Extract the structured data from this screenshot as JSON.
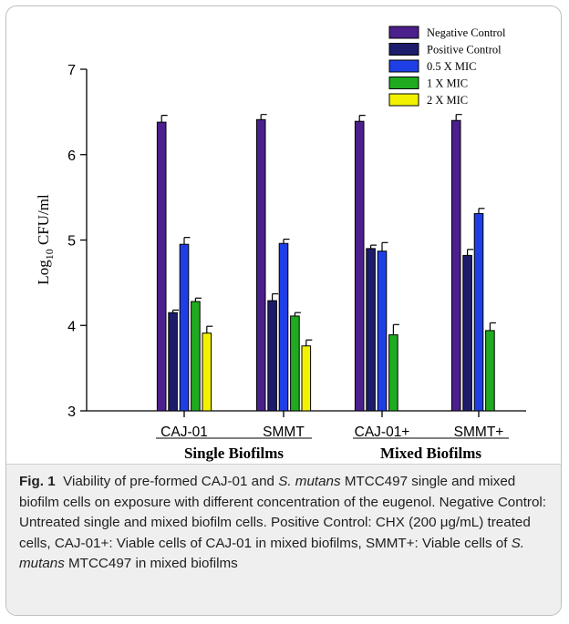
{
  "chart_data": {
    "type": "bar",
    "ylabel_main": "Log",
    "ylabel_sub": "10",
    "ylabel_rest": " CFU/ml",
    "ylim": [
      3,
      7
    ],
    "yticks": [
      "3",
      "4",
      "5",
      "6",
      "7"
    ],
    "categories": [
      "CAJ-01",
      "SMMT",
      "CAJ-01+",
      "SMMT+"
    ],
    "groups": [
      {
        "label": "Single Biofilms"
      },
      {
        "label": "Mixed Biofilms"
      }
    ],
    "series": [
      {
        "name": "Negative Control",
        "color": "#4b1f8c",
        "values": [
          6.38,
          6.41,
          6.39,
          6.4
        ],
        "errors": [
          0.08,
          0.06,
          0.07,
          0.07
        ]
      },
      {
        "name": "Positive Control",
        "color": "#1c1c6b",
        "values": [
          4.15,
          4.29,
          4.9,
          4.82
        ],
        "errors": [
          0.03,
          0.08,
          0.04,
          0.07
        ]
      },
      {
        "name": "0.5 X MIC",
        "color": "#1f3fe6",
        "values": [
          4.95,
          4.96,
          4.87,
          5.31
        ],
        "errors": [
          0.08,
          0.05,
          0.1,
          0.06
        ]
      },
      {
        "name": "1 X MIC",
        "color": "#1faa1f",
        "values": [
          4.28,
          4.11,
          3.89,
          3.94
        ],
        "errors": [
          0.04,
          0.04,
          0.12,
          0.09
        ]
      },
      {
        "name": "2 X MIC",
        "color": "#f2f200",
        "values": [
          3.91,
          3.76,
          null,
          null
        ],
        "errors": [
          0.08,
          0.07,
          null,
          null
        ]
      }
    ],
    "legend_position": "top-right",
    "grid": false
  },
  "caption": {
    "fig_label": "Fig. 1",
    "part1": "Viability of pre-formed CAJ-01 and ",
    "italic1": "S. mutans",
    "part2": " MTCC497 single and mixed biofilm cells on exposure with different concentration of the eugenol. Negative Control: Untreated single and mixed biofilm cells. Positive Control: CHX (200 μg/mL) treated cells, CAJ-01+: Viable cells of CAJ-01 in mixed biofilms, SMMT+: Viable cells of ",
    "italic2": "S. mutans",
    "part3": " MTCC497 in mixed biofilms"
  }
}
